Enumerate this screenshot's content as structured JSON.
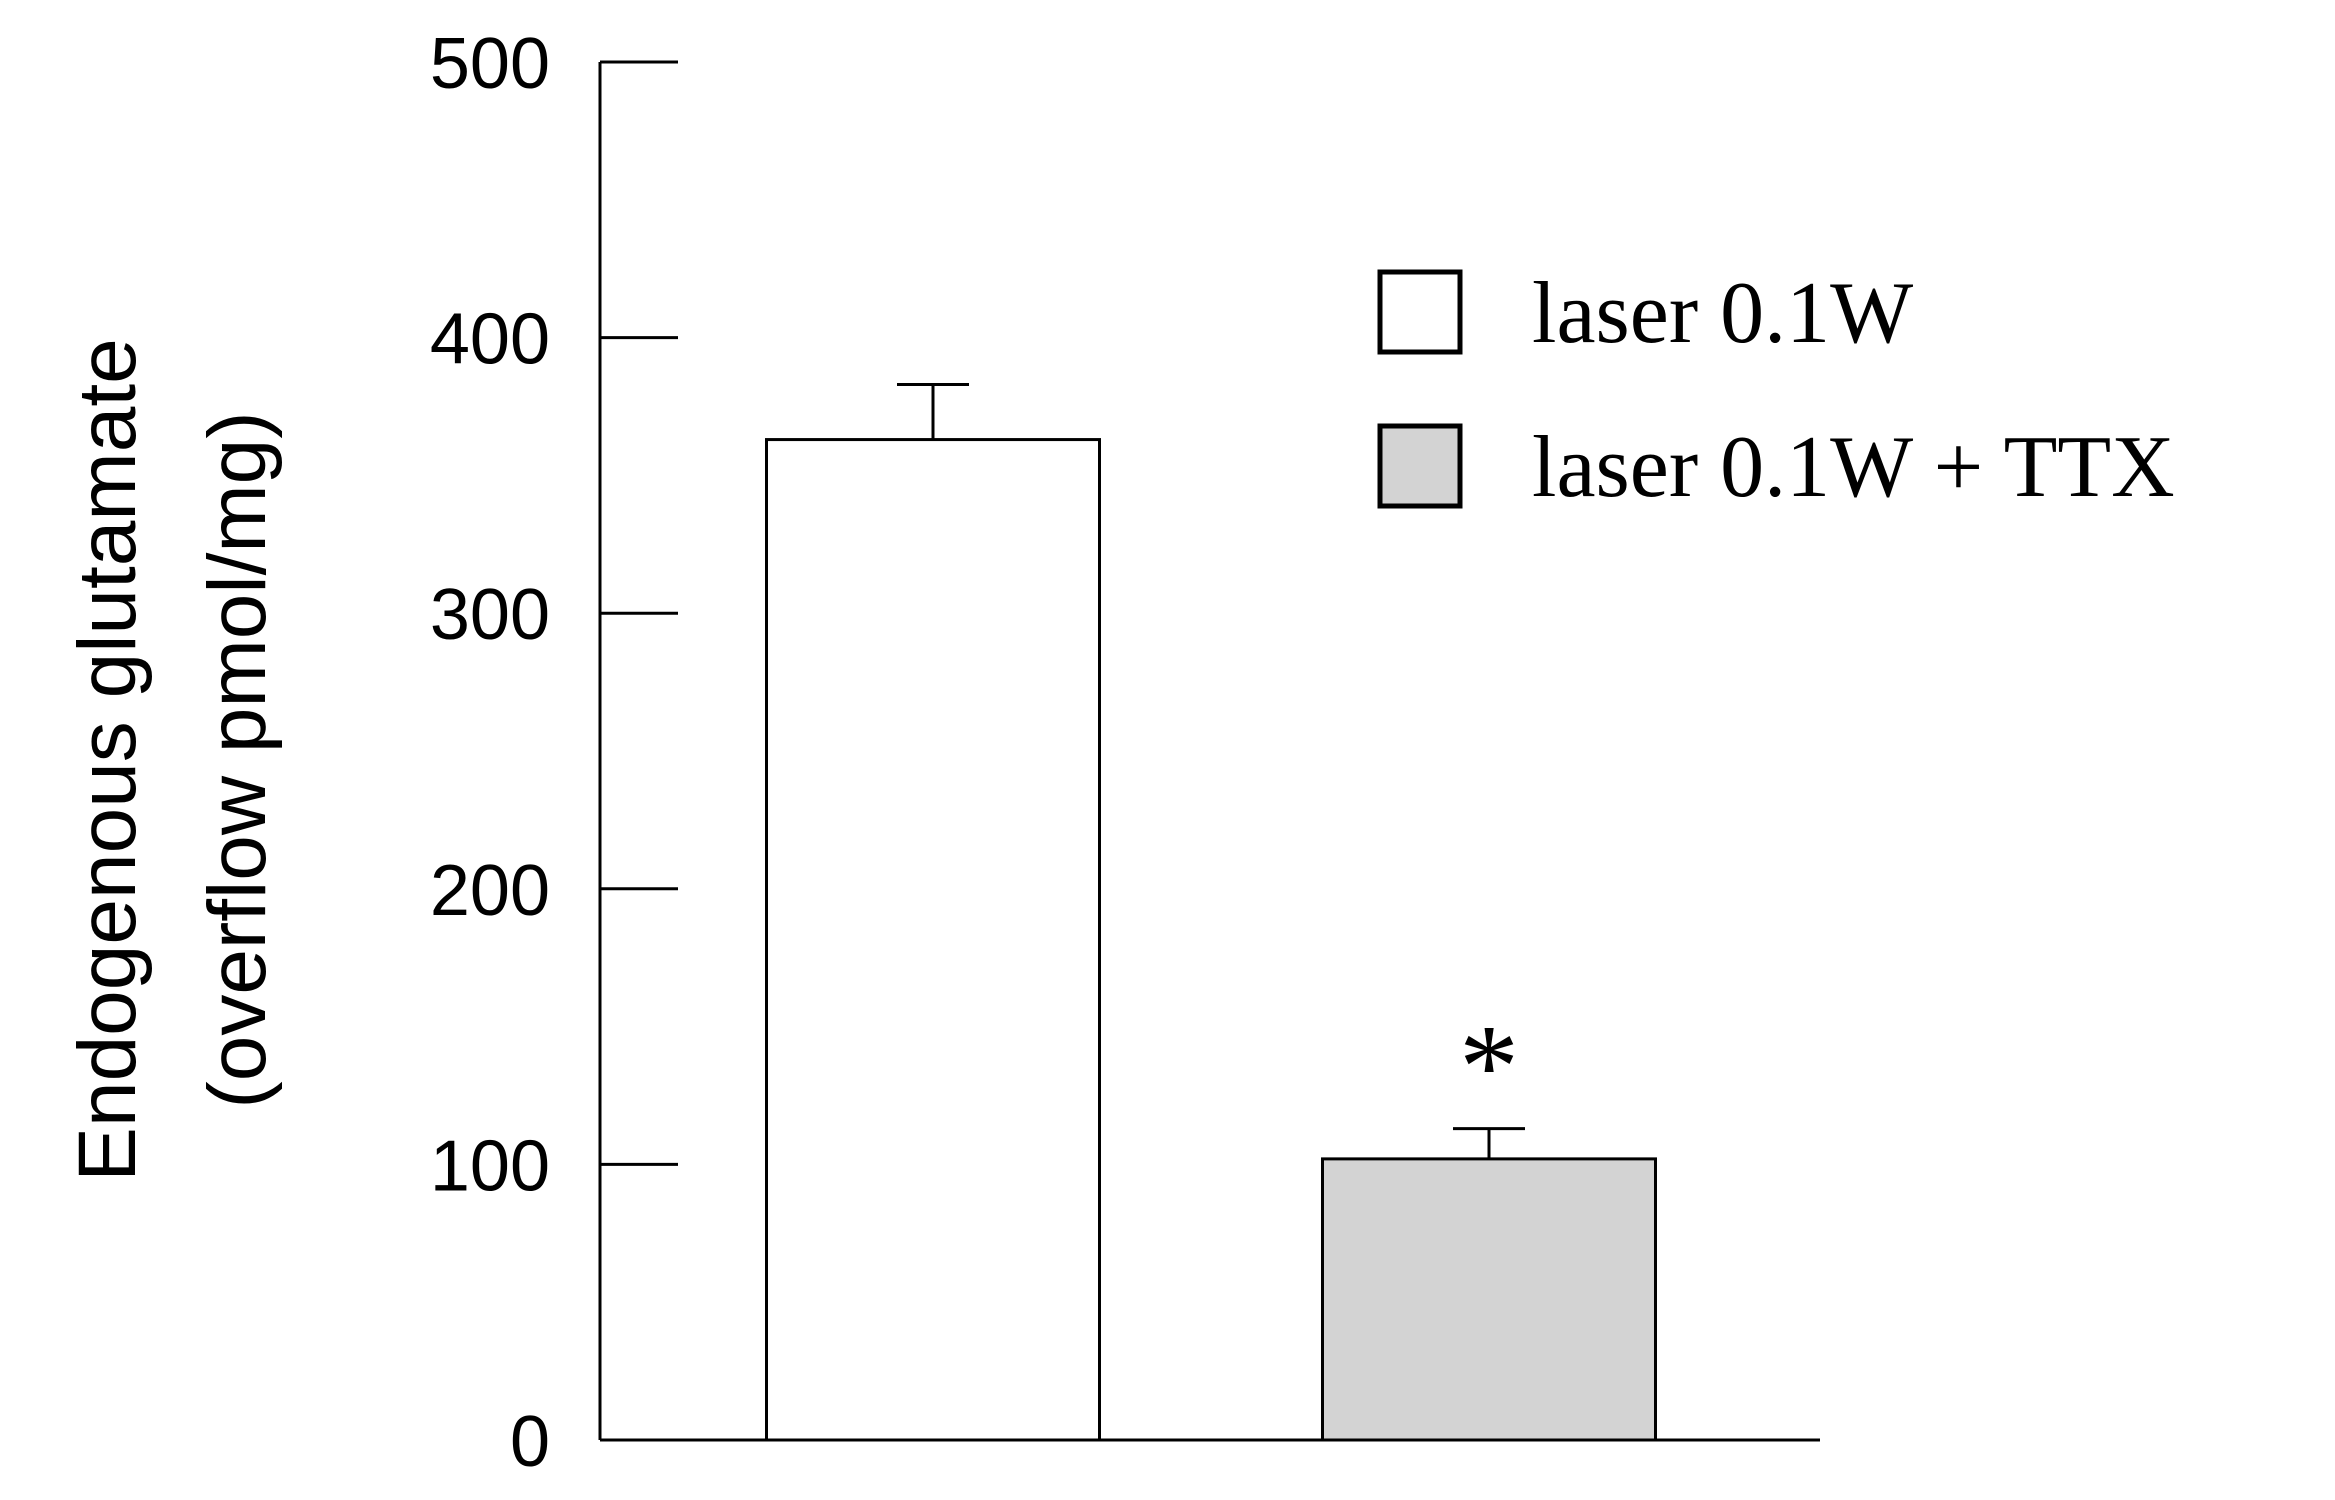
{
  "chart_data": {
    "type": "bar",
    "title": "",
    "xlabel": "",
    "ylabel": [
      "Endogenous glutamate",
      "(overflow pmol/mg)"
    ],
    "ylim": [
      0,
      500
    ],
    "yticks": [
      "0",
      "100",
      "200",
      "300",
      "400",
      "500"
    ],
    "grid": false,
    "legend_position": "top-right",
    "series": [
      {
        "name": "laser 0.1W",
        "value": 363,
        "error": 20,
        "color": "#ffffff"
      },
      {
        "name": "laser 0.1W + TTX",
        "value": 102,
        "error": 11,
        "color": "#d3d3d3",
        "annotation": "*"
      }
    ]
  }
}
